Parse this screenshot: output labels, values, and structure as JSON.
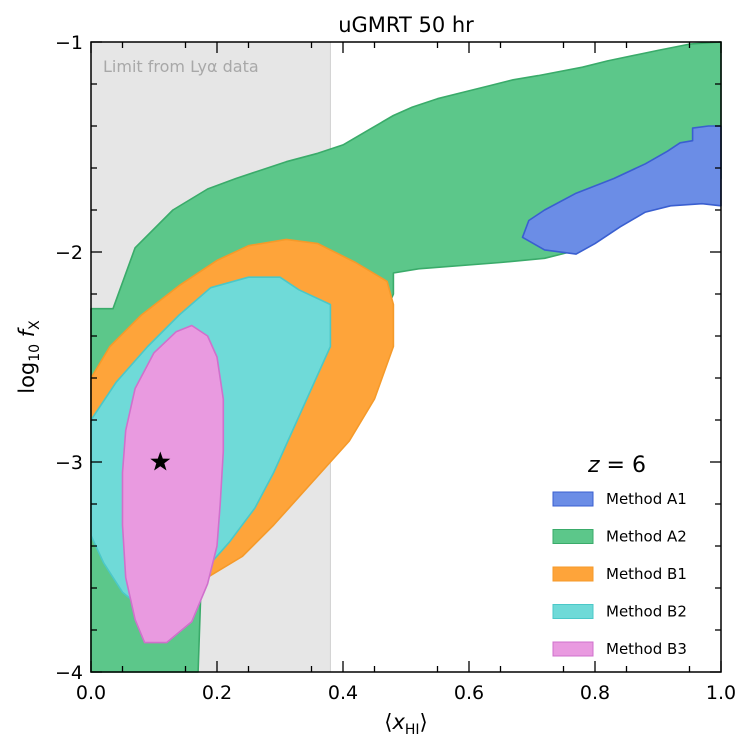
{
  "chart_data": {
    "type": "area",
    "title": "uGMRT 50 hr",
    "xlabel": "⟨x_HI⟩",
    "ylabel": "log10 f_X",
    "xlim": [
      0.0,
      1.0
    ],
    "ylim": [
      -4.0,
      -1.0
    ],
    "x_ticks": [
      0.0,
      0.2,
      0.4,
      0.6,
      0.8,
      1.0
    ],
    "x_tick_labels": [
      "0.0",
      "0.2",
      "0.4",
      "0.6",
      "0.8",
      "1.0"
    ],
    "y_ticks": [
      -4,
      -3,
      -2,
      -1
    ],
    "y_tick_labels": [
      "−4",
      "−3",
      "−2",
      "−1"
    ],
    "shaded_region": {
      "x_range": [
        0.0,
        0.38
      ],
      "label": "Limit from Lyα data",
      "color": "#e6e6e6"
    },
    "legend_title": "z = 6",
    "legend_position": "bottom-right",
    "true_value": {
      "x": 0.11,
      "y": -3.0,
      "marker": "star"
    },
    "series": [
      {
        "name": "Method A2",
        "color": "#5cc78a",
        "edge": "#3aab6a",
        "polygon": [
          [
            0.0,
            -4.0
          ],
          [
            0.17,
            -4.0
          ],
          [
            0.175,
            -3.55
          ],
          [
            0.21,
            -3.38
          ],
          [
            0.3,
            -3.15
          ],
          [
            0.38,
            -2.9
          ],
          [
            0.44,
            -2.48
          ],
          [
            0.48,
            -2.2
          ],
          [
            0.48,
            -2.1
          ],
          [
            0.52,
            -2.08
          ],
          [
            0.65,
            -2.05
          ],
          [
            0.72,
            -2.03
          ],
          [
            0.76,
            -2.0
          ],
          [
            0.8,
            -1.9
          ],
          [
            0.85,
            -1.78
          ],
          [
            0.9,
            -1.72
          ],
          [
            0.95,
            -1.68
          ],
          [
            1.0,
            -1.65
          ],
          [
            1.0,
            -1.0
          ],
          [
            0.95,
            -1.01
          ],
          [
            0.9,
            -1.04
          ],
          [
            0.82,
            -1.09
          ],
          [
            0.78,
            -1.12
          ],
          [
            0.71,
            -1.16
          ],
          [
            0.67,
            -1.18
          ],
          [
            0.63,
            -1.21
          ],
          [
            0.59,
            -1.24
          ],
          [
            0.55,
            -1.27
          ],
          [
            0.51,
            -1.31
          ],
          [
            0.48,
            -1.35
          ],
          [
            0.44,
            -1.42
          ],
          [
            0.4,
            -1.49
          ],
          [
            0.36,
            -1.53
          ],
          [
            0.31,
            -1.57
          ],
          [
            0.27,
            -1.61
          ],
          [
            0.23,
            -1.65
          ],
          [
            0.185,
            -1.7
          ],
          [
            0.13,
            -1.8
          ],
          [
            0.07,
            -1.98
          ],
          [
            0.035,
            -2.27
          ],
          [
            0.0,
            -2.27
          ]
        ]
      },
      {
        "name": "Method A1",
        "color": "#6b8de6",
        "edge": "#3a5fd0",
        "polygon": [
          [
            0.685,
            -1.93
          ],
          [
            0.72,
            -1.99
          ],
          [
            0.77,
            -2.01
          ],
          [
            0.8,
            -1.96
          ],
          [
            0.84,
            -1.88
          ],
          [
            0.88,
            -1.81
          ],
          [
            0.92,
            -1.78
          ],
          [
            0.97,
            -1.77
          ],
          [
            1.0,
            -1.78
          ],
          [
            1.0,
            -1.4
          ],
          [
            0.98,
            -1.4
          ],
          [
            0.955,
            -1.41
          ],
          [
            0.955,
            -1.47
          ],
          [
            0.935,
            -1.48
          ],
          [
            0.915,
            -1.52
          ],
          [
            0.88,
            -1.58
          ],
          [
            0.83,
            -1.65
          ],
          [
            0.77,
            -1.72
          ],
          [
            0.72,
            -1.8
          ],
          [
            0.695,
            -1.85
          ]
        ]
      },
      {
        "name": "Method B1",
        "color": "#fea43a",
        "edge": "#f59a2a",
        "polygon": [
          [
            0.0,
            -2.95
          ],
          [
            0.0,
            -2.6
          ],
          [
            0.03,
            -2.45
          ],
          [
            0.08,
            -2.3
          ],
          [
            0.14,
            -2.16
          ],
          [
            0.2,
            -2.04
          ],
          [
            0.25,
            -1.97
          ],
          [
            0.31,
            -1.94
          ],
          [
            0.36,
            -1.96
          ],
          [
            0.42,
            -2.05
          ],
          [
            0.47,
            -2.14
          ],
          [
            0.48,
            -2.25
          ],
          [
            0.48,
            -2.45
          ],
          [
            0.45,
            -2.7
          ],
          [
            0.41,
            -2.9
          ],
          [
            0.35,
            -3.1
          ],
          [
            0.29,
            -3.3
          ],
          [
            0.24,
            -3.45
          ],
          [
            0.19,
            -3.54
          ],
          [
            0.17,
            -3.58
          ],
          [
            0.13,
            -3.5
          ],
          [
            0.09,
            -3.4
          ],
          [
            0.05,
            -3.25
          ],
          [
            0.02,
            -3.1
          ]
        ]
      },
      {
        "name": "Method B2",
        "color": "#6fdad8",
        "edge": "#4bc8c8",
        "polygon": [
          [
            0.0,
            -3.0
          ],
          [
            0.0,
            -2.8
          ],
          [
            0.04,
            -2.62
          ],
          [
            0.09,
            -2.45
          ],
          [
            0.14,
            -2.3
          ],
          [
            0.19,
            -2.17
          ],
          [
            0.25,
            -2.12
          ],
          [
            0.3,
            -2.12
          ],
          [
            0.33,
            -2.18
          ],
          [
            0.38,
            -2.25
          ],
          [
            0.38,
            -2.45
          ],
          [
            0.35,
            -2.65
          ],
          [
            0.32,
            -2.85
          ],
          [
            0.29,
            -3.05
          ],
          [
            0.26,
            -3.22
          ],
          [
            0.22,
            -3.38
          ],
          [
            0.17,
            -3.55
          ],
          [
            0.13,
            -3.62
          ],
          [
            0.09,
            -3.72
          ],
          [
            0.05,
            -3.62
          ],
          [
            0.02,
            -3.48
          ],
          [
            0.0,
            -3.35
          ]
        ]
      },
      {
        "name": "Method B3",
        "color": "#e99ae0",
        "edge": "#d070cc",
        "polygon": [
          [
            0.05,
            -3.05
          ],
          [
            0.055,
            -2.85
          ],
          [
            0.07,
            -2.65
          ],
          [
            0.1,
            -2.48
          ],
          [
            0.135,
            -2.38
          ],
          [
            0.16,
            -2.35
          ],
          [
            0.185,
            -2.4
          ],
          [
            0.2,
            -2.5
          ],
          [
            0.21,
            -2.7
          ],
          [
            0.21,
            -2.95
          ],
          [
            0.205,
            -3.2
          ],
          [
            0.2,
            -3.4
          ],
          [
            0.185,
            -3.58
          ],
          [
            0.16,
            -3.76
          ],
          [
            0.12,
            -3.86
          ],
          [
            0.085,
            -3.86
          ],
          [
            0.07,
            -3.75
          ],
          [
            0.055,
            -3.55
          ],
          [
            0.05,
            -3.3
          ]
        ]
      }
    ]
  }
}
